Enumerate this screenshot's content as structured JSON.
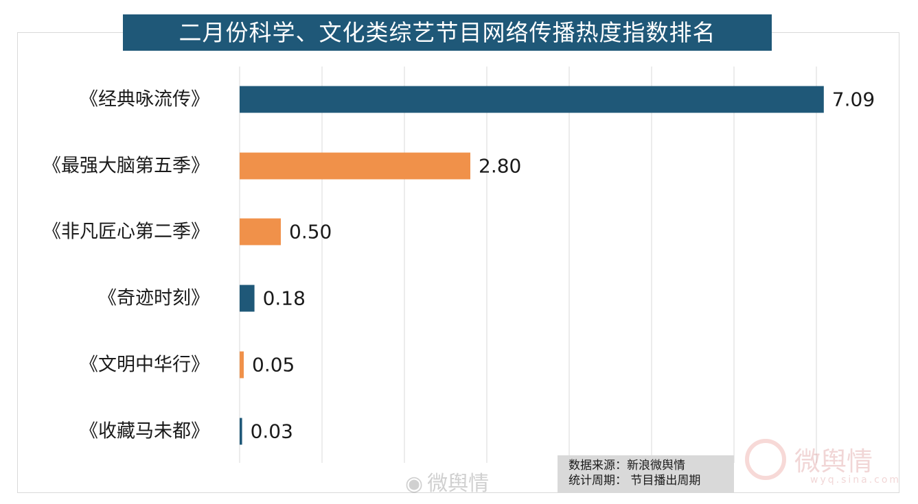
{
  "chart_data": {
    "type": "bar",
    "orientation": "horizontal",
    "title": "二月份科学、文化类综艺节目网络传播热度指数排名",
    "categories": [
      "《经典咏流传》",
      "《最强大脑第五季》",
      "《非凡匠心第二季》",
      "《奇迹时刻》",
      "《文明中华行》",
      "《收藏马未都》"
    ],
    "values": [
      7.09,
      2.8,
      0.5,
      0.18,
      0.05,
      0.03
    ],
    "value_labels": [
      "7.09",
      "2.80",
      "0.50",
      "0.18",
      "0.05",
      "0.03"
    ],
    "bar_colors": [
      "#1f5878",
      "#f0914a",
      "#f0914a",
      "#1f5878",
      "#f0914a",
      "#1f5878"
    ],
    "xlim": [
      0,
      7.5
    ],
    "grid": true,
    "xlabel": "",
    "ylabel": ""
  },
  "source_note": {
    "line1": "数据来源：新浪微舆情",
    "line2": "统计周期：  节目播出周期"
  },
  "watermarks": {
    "center_text": "微舆情",
    "center_icon": "weibo-logo-icon",
    "right_text": "微舆情",
    "right_url": "wyq.sina.com",
    "right_icon": "weibo-logo-icon"
  },
  "colors": {
    "navy": "#1f5878",
    "orange": "#f0914a",
    "grid": "#d9d9d9"
  }
}
